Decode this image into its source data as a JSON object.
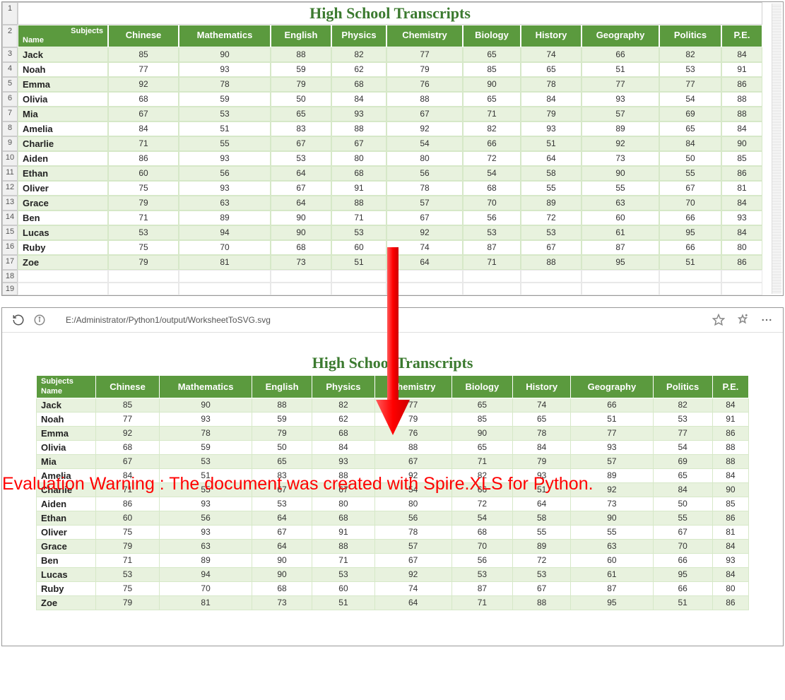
{
  "title": "High School Transcripts",
  "header_name_top": "Subjects",
  "header_name_bottom": "Name",
  "columns": [
    "Chinese",
    "Mathematics",
    "English",
    "Physics",
    "Chemistry",
    "Biology",
    "History",
    "Geography",
    "Politics",
    "P.E."
  ],
  "students": [
    {
      "name": "Jack",
      "scores": [
        85,
        90,
        88,
        82,
        77,
        65,
        74,
        66,
        82,
        84
      ]
    },
    {
      "name": "Noah",
      "scores": [
        77,
        93,
        59,
        62,
        79,
        85,
        65,
        51,
        53,
        91
      ]
    },
    {
      "name": "Emma",
      "scores": [
        92,
        78,
        79,
        68,
        76,
        90,
        78,
        77,
        77,
        86
      ]
    },
    {
      "name": "Olivia",
      "scores": [
        68,
        59,
        50,
        84,
        88,
        65,
        84,
        93,
        54,
        88
      ]
    },
    {
      "name": "Mia",
      "scores": [
        67,
        53,
        65,
        93,
        67,
        71,
        79,
        57,
        69,
        88
      ]
    },
    {
      "name": "Amelia",
      "scores": [
        84,
        51,
        83,
        88,
        92,
        82,
        93,
        89,
        65,
        84
      ]
    },
    {
      "name": "Charlie",
      "scores": [
        71,
        55,
        67,
        67,
        54,
        66,
        51,
        92,
        84,
        90
      ]
    },
    {
      "name": "Aiden",
      "scores": [
        86,
        93,
        53,
        80,
        80,
        72,
        64,
        73,
        50,
        85
      ]
    },
    {
      "name": "Ethan",
      "scores": [
        60,
        56,
        64,
        68,
        56,
        54,
        58,
        90,
        55,
        86
      ]
    },
    {
      "name": "Oliver",
      "scores": [
        75,
        93,
        67,
        91,
        78,
        68,
        55,
        55,
        67,
        81
      ]
    },
    {
      "name": "Grace",
      "scores": [
        79,
        63,
        64,
        88,
        57,
        70,
        89,
        63,
        70,
        84
      ]
    },
    {
      "name": "Ben",
      "scores": [
        71,
        89,
        90,
        71,
        67,
        56,
        72,
        60,
        66,
        93
      ]
    },
    {
      "name": "Lucas",
      "scores": [
        53,
        94,
        90,
        53,
        92,
        53,
        53,
        61,
        95,
        84
      ]
    },
    {
      "name": "Ruby",
      "scores": [
        75,
        70,
        68,
        60,
        74,
        87,
        67,
        87,
        66,
        80
      ]
    },
    {
      "name": "Zoe",
      "scores": [
        79,
        81,
        73,
        51,
        64,
        71,
        88,
        95,
        51,
        86
      ]
    }
  ],
  "excel_row_count_after": 2,
  "browser_url": "E:/Administrator/Python1/output/WorksheetToSVG.svg",
  "watermark_text": "Evaluation Warning : The document was created with Spire.XLS for Python.",
  "colors": {
    "header_bg": "#5b9a3e",
    "title_color": "#3b7a2f",
    "row_even": "#e8f2de",
    "row_odd": "#ffffff",
    "border": "#d6e8c8",
    "warning": "#ff0000",
    "arrow": "#ff0000"
  }
}
